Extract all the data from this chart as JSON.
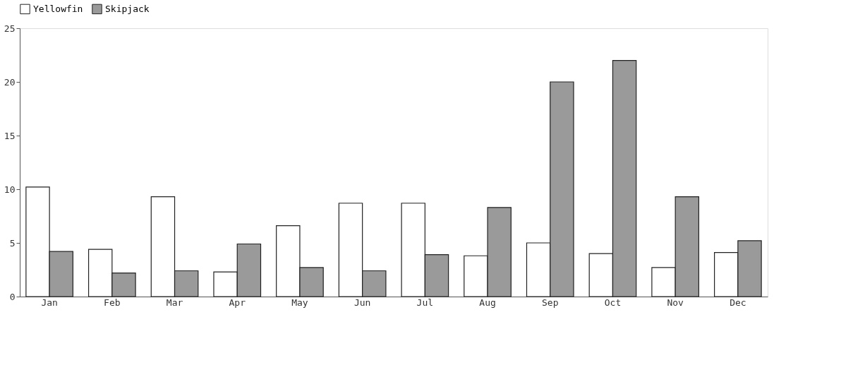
{
  "chart_data": {
    "type": "bar",
    "categories": [
      "Jan",
      "Feb",
      "Mar",
      "Apr",
      "May",
      "Jun",
      "Jul",
      "Aug",
      "Sep",
      "Oct",
      "Nov",
      "Dec"
    ],
    "series": [
      {
        "name": "Yellowfin",
        "color": "#ffffff",
        "values": [
          10.2,
          4.4,
          9.3,
          2.3,
          6.6,
          8.7,
          8.7,
          3.8,
          5.0,
          4.0,
          2.7,
          4.1
        ]
      },
      {
        "name": "Skipjack",
        "color": "#9a9a9a",
        "values": [
          4.2,
          2.2,
          2.4,
          4.9,
          2.7,
          2.4,
          3.9,
          8.3,
          20.0,
          22.0,
          9.3,
          5.2
        ]
      }
    ],
    "ylim": [
      0,
      25
    ],
    "yticks": [
      0,
      5,
      10,
      15,
      20,
      25
    ],
    "grid": false,
    "legend": "top"
  }
}
